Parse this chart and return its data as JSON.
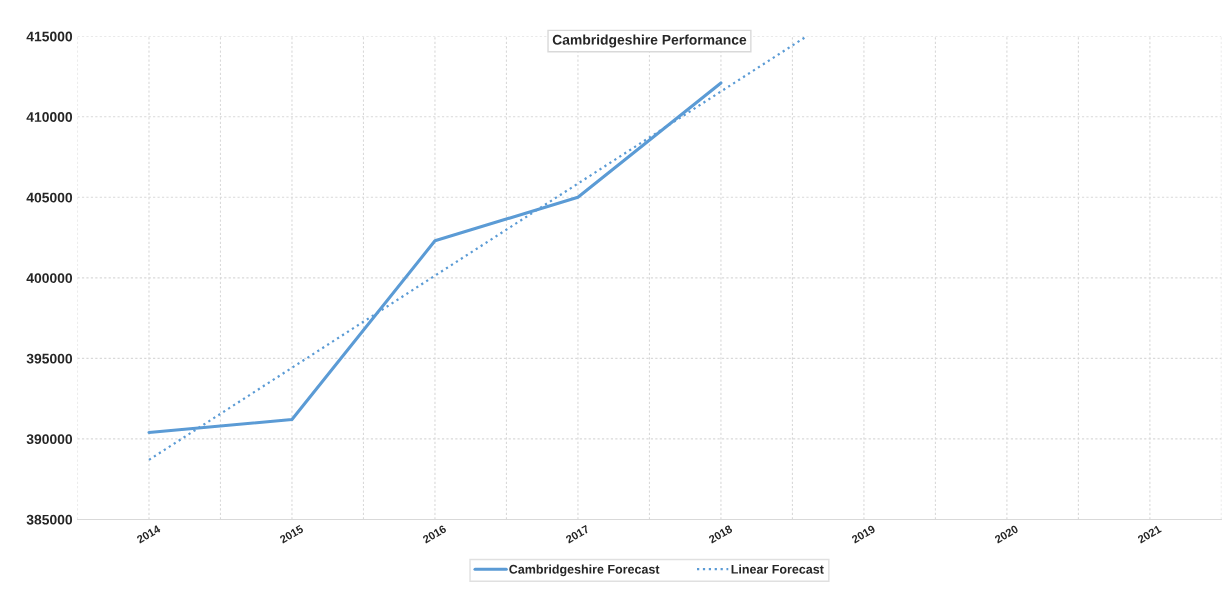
{
  "chart_data": {
    "type": "line",
    "title": "Cambridgeshire Performance",
    "xlim": [
      2013.5,
      2021.5
    ],
    "xticks": [
      2014,
      2015,
      2016,
      2017,
      2018,
      2019,
      2020,
      2021
    ],
    "ylim": [
      385000,
      415000
    ],
    "yticks": [
      385000,
      390000,
      395000,
      400000,
      405000,
      410000,
      415000
    ],
    "series": [
      {
        "name": "Cambridgeshire Forecast",
        "color": "#5b9bd5",
        "x": [
          2014,
          2015,
          2016,
          2017,
          2018
        ],
        "values": [
          390400,
          391200,
          402300,
          405000,
          412100
        ],
        "line_style": "solid"
      },
      {
        "name": "Linear Forecast",
        "color": "#5b9bd5",
        "x": [
          2014,
          2018.6
        ],
        "values": [
          388700,
          415000
        ],
        "line_style": "dotted"
      }
    ],
    "grid": true,
    "legend": "bottom",
    "marker": "none"
  }
}
